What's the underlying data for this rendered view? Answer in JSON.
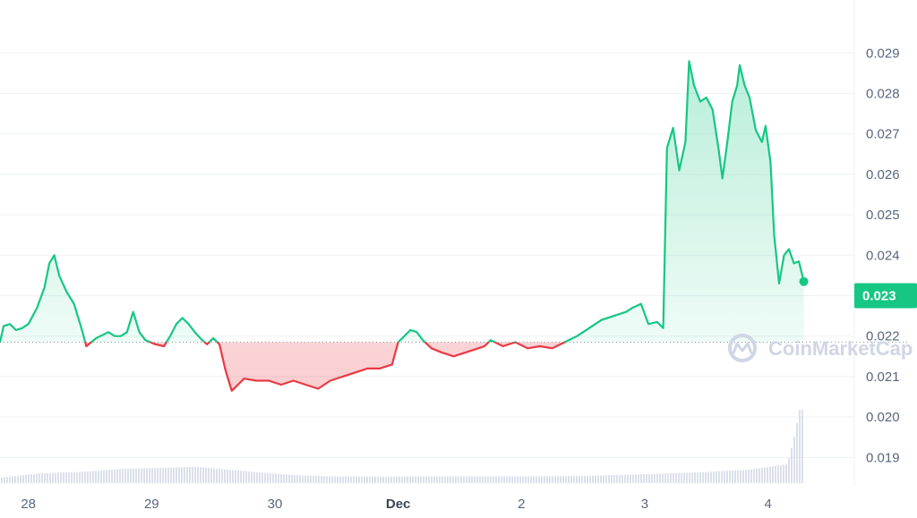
{
  "chart_data": {
    "type": "line",
    "title": "",
    "xlabel": "",
    "ylabel": "",
    "ylim": [
      0.0183,
      0.0302
    ],
    "y_ticks": [
      "0.019",
      "0.020",
      "0.021",
      "0.022",
      "0.023",
      "0.024",
      "0.025",
      "0.026",
      "0.027",
      "0.028",
      "0.029"
    ],
    "x_ticks": [
      {
        "label": "28",
        "x": 0.35,
        "bold": false
      },
      {
        "label": "29",
        "x": 1.35,
        "bold": false
      },
      {
        "label": "30",
        "x": 2.35,
        "bold": false
      },
      {
        "label": "Dec",
        "x": 3.35,
        "bold": true
      },
      {
        "label": "2",
        "x": 4.35,
        "bold": false
      },
      {
        "label": "3",
        "x": 5.35,
        "bold": false
      },
      {
        "label": "4",
        "x": 6.35,
        "bold": false
      }
    ],
    "xlim": [
      0.12,
      7.05
    ],
    "baseline": 0.02185,
    "current_price": "0.023",
    "grid": true,
    "colors": {
      "up": "#16c784",
      "down": "#ea3943",
      "volume": "#cfd6e4",
      "badge": "#16c784"
    },
    "series": [
      {
        "values": [
          [
            0.12,
            0.02185
          ],
          [
            0.15,
            0.02225
          ],
          [
            0.2,
            0.0223
          ],
          [
            0.25,
            0.02215
          ],
          [
            0.3,
            0.0222
          ],
          [
            0.35,
            0.0223
          ],
          [
            0.42,
            0.0227
          ],
          [
            0.48,
            0.0232
          ],
          [
            0.52,
            0.0238
          ],
          [
            0.56,
            0.024
          ],
          [
            0.6,
            0.0235
          ],
          [
            0.66,
            0.0231
          ],
          [
            0.72,
            0.0228
          ],
          [
            0.78,
            0.0222
          ],
          [
            0.82,
            0.02175
          ],
          [
            0.9,
            0.02195
          ],
          [
            1.0,
            0.0221
          ],
          [
            1.05,
            0.022
          ],
          [
            1.1,
            0.022
          ],
          [
            1.15,
            0.0221
          ],
          [
            1.2,
            0.0226
          ],
          [
            1.25,
            0.0221
          ],
          [
            1.3,
            0.0219
          ],
          [
            1.38,
            0.0218
          ],
          [
            1.45,
            0.02175
          ],
          [
            1.5,
            0.022
          ],
          [
            1.55,
            0.0223
          ],
          [
            1.6,
            0.02245
          ],
          [
            1.65,
            0.0223
          ],
          [
            1.7,
            0.0221
          ],
          [
            1.76,
            0.0219
          ],
          [
            1.8,
            0.0218
          ],
          [
            1.85,
            0.02195
          ],
          [
            1.9,
            0.0218
          ],
          [
            1.95,
            0.02115
          ],
          [
            2.0,
            0.02065
          ],
          [
            2.05,
            0.0208
          ],
          [
            2.1,
            0.02095
          ],
          [
            2.2,
            0.0209
          ],
          [
            2.3,
            0.0209
          ],
          [
            2.4,
            0.0208
          ],
          [
            2.5,
            0.0209
          ],
          [
            2.6,
            0.0208
          ],
          [
            2.7,
            0.0207
          ],
          [
            2.8,
            0.0209
          ],
          [
            2.9,
            0.021
          ],
          [
            3.0,
            0.0211
          ],
          [
            3.1,
            0.0212
          ],
          [
            3.2,
            0.0212
          ],
          [
            3.3,
            0.0213
          ],
          [
            3.35,
            0.02185
          ],
          [
            3.4,
            0.022
          ],
          [
            3.45,
            0.02215
          ],
          [
            3.5,
            0.0221
          ],
          [
            3.55,
            0.0219
          ],
          [
            3.62,
            0.0217
          ],
          [
            3.7,
            0.0216
          ],
          [
            3.8,
            0.0215
          ],
          [
            3.9,
            0.0216
          ],
          [
            4.0,
            0.0217
          ],
          [
            4.05,
            0.02175
          ],
          [
            4.1,
            0.0219
          ],
          [
            4.2,
            0.02175
          ],
          [
            4.3,
            0.02185
          ],
          [
            4.4,
            0.0217
          ],
          [
            4.5,
            0.02175
          ],
          [
            4.6,
            0.0217
          ],
          [
            4.7,
            0.02185
          ],
          [
            4.8,
            0.022
          ],
          [
            4.9,
            0.0222
          ],
          [
            5.0,
            0.0224
          ],
          [
            5.1,
            0.0225
          ],
          [
            5.2,
            0.0226
          ],
          [
            5.25,
            0.0227
          ],
          [
            5.32,
            0.0228
          ],
          [
            5.38,
            0.0223
          ],
          [
            5.45,
            0.02235
          ],
          [
            5.5,
            0.0222
          ],
          [
            5.53,
            0.02665
          ],
          [
            5.58,
            0.02715
          ],
          [
            5.63,
            0.0261
          ],
          [
            5.68,
            0.0268
          ],
          [
            5.71,
            0.0288
          ],
          [
            5.75,
            0.0282
          ],
          [
            5.8,
            0.0278
          ],
          [
            5.85,
            0.0279
          ],
          [
            5.9,
            0.0276
          ],
          [
            5.95,
            0.0266
          ],
          [
            5.98,
            0.0259
          ],
          [
            6.02,
            0.0268
          ],
          [
            6.06,
            0.0278
          ],
          [
            6.1,
            0.0282
          ],
          [
            6.12,
            0.0287
          ],
          [
            6.16,
            0.0282
          ],
          [
            6.2,
            0.0279
          ],
          [
            6.25,
            0.0271
          ],
          [
            6.3,
            0.0268
          ],
          [
            6.33,
            0.0272
          ],
          [
            6.37,
            0.0263
          ],
          [
            6.4,
            0.0245
          ],
          [
            6.44,
            0.0233
          ],
          [
            6.48,
            0.024
          ],
          [
            6.52,
            0.02415
          ],
          [
            6.56,
            0.0238
          ],
          [
            6.6,
            0.02385
          ],
          [
            6.64,
            0.02335
          ]
        ]
      }
    ],
    "volume": [
      [
        0.12,
        0.0
      ],
      [
        0.4,
        0.06
      ],
      [
        0.8,
        0.09
      ],
      [
        1.1,
        0.13
      ],
      [
        1.3,
        0.14
      ],
      [
        1.7,
        0.16
      ],
      [
        1.9,
        0.13
      ],
      [
        2.2,
        0.08
      ],
      [
        2.5,
        0.04
      ],
      [
        2.8,
        0.02
      ],
      [
        3.2,
        0.015
      ],
      [
        3.6,
        0.02
      ],
      [
        4.2,
        0.02
      ],
      [
        4.8,
        0.025
      ],
      [
        5.3,
        0.05
      ],
      [
        5.8,
        0.08
      ],
      [
        6.2,
        0.12
      ],
      [
        6.5,
        0.2
      ],
      [
        6.55,
        0.55
      ],
      [
        6.6,
        1.0
      ],
      [
        6.64,
        1.0
      ]
    ]
  },
  "watermark": {
    "text": "CoinMarketCap"
  }
}
